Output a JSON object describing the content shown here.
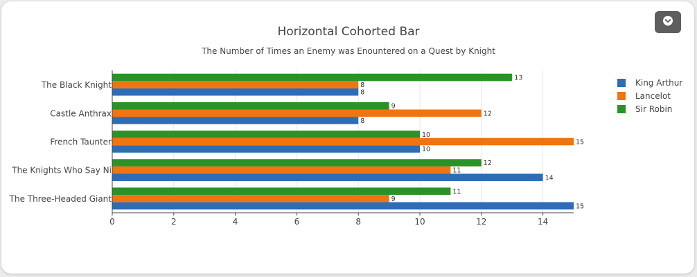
{
  "chart_data": {
    "type": "bar",
    "orientation": "horizontal",
    "title": "Horizontal Cohorted Bar",
    "subtitle": "The Number of Times an Enemy was Enountered on a Quest by Knight",
    "categories": [
      "The Black Knight",
      "Castle Anthrax",
      "French Taunter",
      "The Knights Who Say Ni",
      "The Three-Headed Giant"
    ],
    "series": [
      {
        "name": "King Arthur",
        "color": "#2e6db4",
        "values": [
          8,
          8,
          10,
          14,
          15
        ]
      },
      {
        "name": "Lancelot",
        "color": "#f07410",
        "values": [
          8,
          12,
          15,
          11,
          9
        ]
      },
      {
        "name": "Sir Robin",
        "color": "#2b9228",
        "values": [
          13,
          9,
          10,
          12,
          11
        ]
      }
    ],
    "xlim": [
      0,
      15
    ],
    "xticks": [
      0,
      2,
      4,
      6,
      8,
      10,
      12,
      14
    ],
    "grid": "vertical",
    "legend_position": "top-right",
    "data_labels": true
  },
  "menu": {
    "icon": "chevron-down-icon"
  }
}
